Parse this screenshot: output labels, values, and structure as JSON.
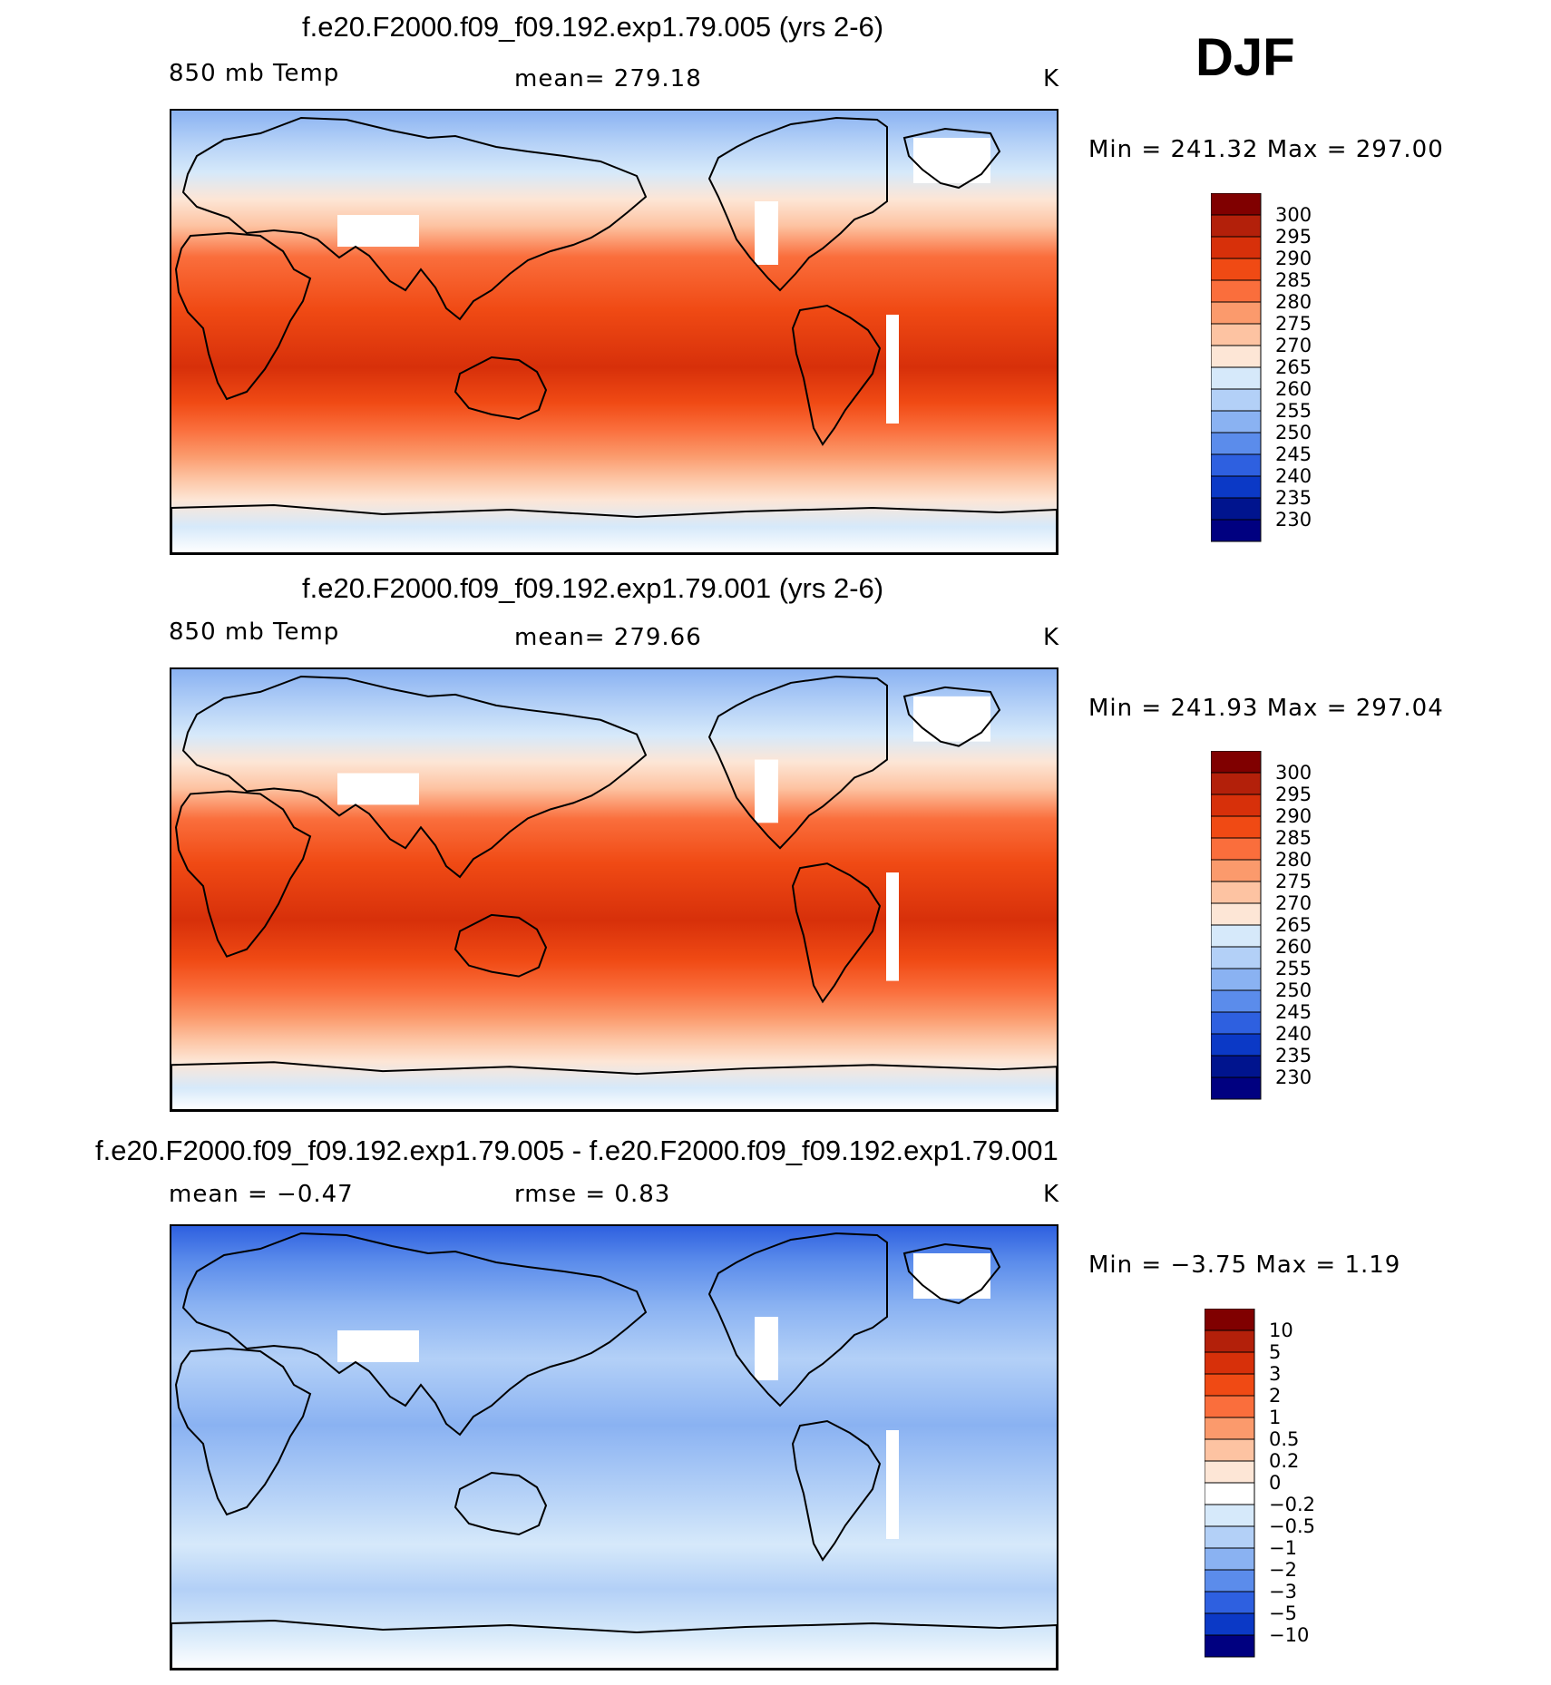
{
  "season": "DJF",
  "panels": [
    {
      "title": "f.e20.F2000.f09_f09.192.exp1.79.005 (yrs 2-6)",
      "variable": "850 mb Temp",
      "stat": "mean= 279.18",
      "unit": "K",
      "minmax": "Min = 241.32 Max = 297.00",
      "legend": {
        "labels": [
          "300",
          "295",
          "290",
          "285",
          "280",
          "275",
          "270",
          "265",
          "260",
          "255",
          "250",
          "245",
          "240",
          "235",
          "230"
        ],
        "colors": [
          "#800000",
          "#b3200a",
          "#d7300a",
          "#f04a14",
          "#fa6e3c",
          "#fb9a6c",
          "#fdc3a2",
          "#fde6d6",
          "#d6e9fa",
          "#b3d0f7",
          "#8ab2f2",
          "#5b8ceb",
          "#2e60e0",
          "#0b39c6",
          "#00148e",
          "#000080"
        ]
      },
      "zonal": [
        {
          "pos": 0.0,
          "color": "#8ab2f2"
        },
        {
          "pos": 0.07,
          "color": "#b3d0f7"
        },
        {
          "pos": 0.14,
          "color": "#d6e9fa"
        },
        {
          "pos": 0.2,
          "color": "#fde6d6"
        },
        {
          "pos": 0.26,
          "color": "#fdc3a2"
        },
        {
          "pos": 0.33,
          "color": "#fa6e3c"
        },
        {
          "pos": 0.45,
          "color": "#f04a14"
        },
        {
          "pos": 0.58,
          "color": "#d7300a"
        },
        {
          "pos": 0.66,
          "color": "#f04a14"
        },
        {
          "pos": 0.72,
          "color": "#fa6e3c"
        },
        {
          "pos": 0.78,
          "color": "#fb9a6c"
        },
        {
          "pos": 0.83,
          "color": "#fdc3a2"
        },
        {
          "pos": 0.88,
          "color": "#fde6d6"
        },
        {
          "pos": 0.94,
          "color": "#d6e9fa"
        },
        {
          "pos": 1.0,
          "color": "#ffffff"
        }
      ]
    },
    {
      "title": "f.e20.F2000.f09_f09.192.exp1.79.001 (yrs 2-6)",
      "variable": "850 mb Temp",
      "stat": "mean= 279.66",
      "unit": "K",
      "minmax": "Min = 241.93 Max = 297.04",
      "legend": {
        "labels": [
          "300",
          "295",
          "290",
          "285",
          "280",
          "275",
          "270",
          "265",
          "260",
          "255",
          "250",
          "245",
          "240",
          "235",
          "230"
        ],
        "colors": [
          "#800000",
          "#b3200a",
          "#d7300a",
          "#f04a14",
          "#fa6e3c",
          "#fb9a6c",
          "#fdc3a2",
          "#fde6d6",
          "#d6e9fa",
          "#b3d0f7",
          "#8ab2f2",
          "#5b8ceb",
          "#2e60e0",
          "#0b39c6",
          "#00148e",
          "#000080"
        ]
      },
      "zonal": [
        {
          "pos": 0.0,
          "color": "#8ab2f2"
        },
        {
          "pos": 0.08,
          "color": "#b3d0f7"
        },
        {
          "pos": 0.15,
          "color": "#d6e9fa"
        },
        {
          "pos": 0.21,
          "color": "#fde6d6"
        },
        {
          "pos": 0.27,
          "color": "#fdc3a2"
        },
        {
          "pos": 0.34,
          "color": "#fa6e3c"
        },
        {
          "pos": 0.44,
          "color": "#f04a14"
        },
        {
          "pos": 0.57,
          "color": "#d7300a"
        },
        {
          "pos": 0.66,
          "color": "#f04a14"
        },
        {
          "pos": 0.73,
          "color": "#fa6e3c"
        },
        {
          "pos": 0.79,
          "color": "#fb9a6c"
        },
        {
          "pos": 0.84,
          "color": "#fdc3a2"
        },
        {
          "pos": 0.89,
          "color": "#fde6d6"
        },
        {
          "pos": 0.95,
          "color": "#d6e9fa"
        },
        {
          "pos": 1.0,
          "color": "#ffffff"
        }
      ]
    },
    {
      "title": "f.e20.F2000.f09_f09.192.exp1.79.005 - f.e20.F2000.f09_f09.192.exp1.79.001",
      "variable": "mean =   −0.47",
      "stat": "rmse =    0.83",
      "unit": "K",
      "minmax": "Min =   −3.75 Max =    1.19",
      "legend": {
        "labels": [
          "10",
          "5",
          "3",
          "2",
          "1",
          "0.5",
          "0.2",
          "0",
          "−0.2",
          "−0.5",
          "−1",
          "−2",
          "−3",
          "−5",
          "−10"
        ],
        "colors": [
          "#800000",
          "#b3200a",
          "#d7300a",
          "#f04a14",
          "#fa6e3c",
          "#fb9a6c",
          "#fdc3a2",
          "#fde6d6",
          "#ffffff",
          "#d6e9fa",
          "#b3d0f7",
          "#8ab2f2",
          "#5b8ceb",
          "#2e60e0",
          "#0b39c6",
          "#000080"
        ]
      },
      "zonal": [
        {
          "pos": 0.0,
          "color": "#2e60e0"
        },
        {
          "pos": 0.08,
          "color": "#5b8ceb"
        },
        {
          "pos": 0.18,
          "color": "#8ab2f2"
        },
        {
          "pos": 0.3,
          "color": "#b3d0f7"
        },
        {
          "pos": 0.45,
          "color": "#8ab2f2"
        },
        {
          "pos": 0.6,
          "color": "#b3d0f7"
        },
        {
          "pos": 0.72,
          "color": "#d6e9fa"
        },
        {
          "pos": 0.82,
          "color": "#b3d0f7"
        },
        {
          "pos": 0.92,
          "color": "#d6e9fa"
        },
        {
          "pos": 1.0,
          "color": "#ffffff"
        }
      ]
    }
  ]
}
